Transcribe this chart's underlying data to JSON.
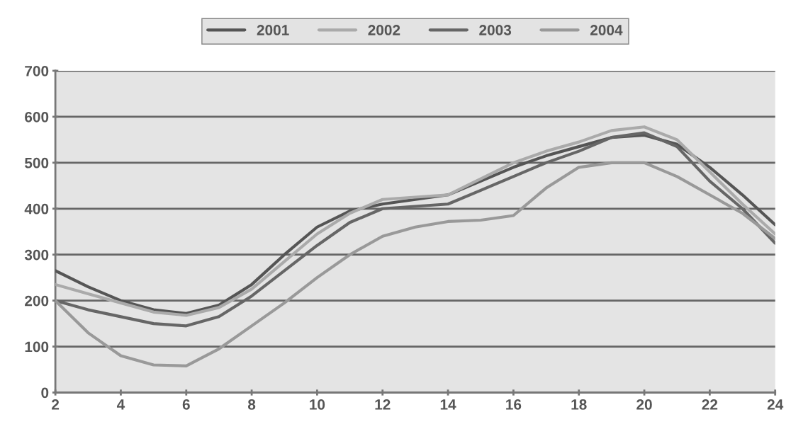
{
  "chart_data": {
    "type": "line",
    "x": [
      2,
      3,
      4,
      5,
      6,
      7,
      8,
      9,
      10,
      11,
      12,
      13,
      14,
      15,
      16,
      17,
      18,
      19,
      20,
      21,
      22,
      23,
      24
    ],
    "series": [
      {
        "name": "2001",
        "color": "#555555",
        "values": [
          265,
          230,
          200,
          180,
          172,
          190,
          235,
          300,
          360,
          395,
          410,
          420,
          430,
          460,
          490,
          515,
          535,
          555,
          560,
          540,
          490,
          430,
          365
        ]
      },
      {
        "name": "2002",
        "color": "#aaaaaa",
        "values": [
          235,
          215,
          195,
          175,
          168,
          185,
          225,
          285,
          345,
          390,
          420,
          425,
          430,
          465,
          500,
          525,
          545,
          570,
          578,
          550,
          480,
          410,
          345
        ]
      },
      {
        "name": "2003",
        "color": "#666666",
        "values": [
          200,
          180,
          165,
          150,
          145,
          165,
          210,
          265,
          320,
          370,
          400,
          405,
          410,
          440,
          470,
          500,
          525,
          555,
          565,
          535,
          460,
          400,
          325
        ]
      },
      {
        "name": "2004",
        "color": "#999999",
        "values": [
          200,
          130,
          80,
          60,
          58,
          95,
          145,
          195,
          250,
          300,
          340,
          360,
          372,
          375,
          385,
          445,
          490,
          500,
          500,
          470,
          430,
          390,
          335
        ]
      }
    ],
    "xlim": [
      2,
      24
    ],
    "xticks": [
      2,
      4,
      6,
      8,
      10,
      12,
      14,
      16,
      18,
      20,
      22,
      24
    ],
    "ylim": [
      0,
      700
    ],
    "yticks": [
      0,
      100,
      200,
      300,
      400,
      500,
      600,
      700
    ],
    "grid": "y",
    "legend": "top",
    "marker": "none",
    "line_style": "solid"
  }
}
